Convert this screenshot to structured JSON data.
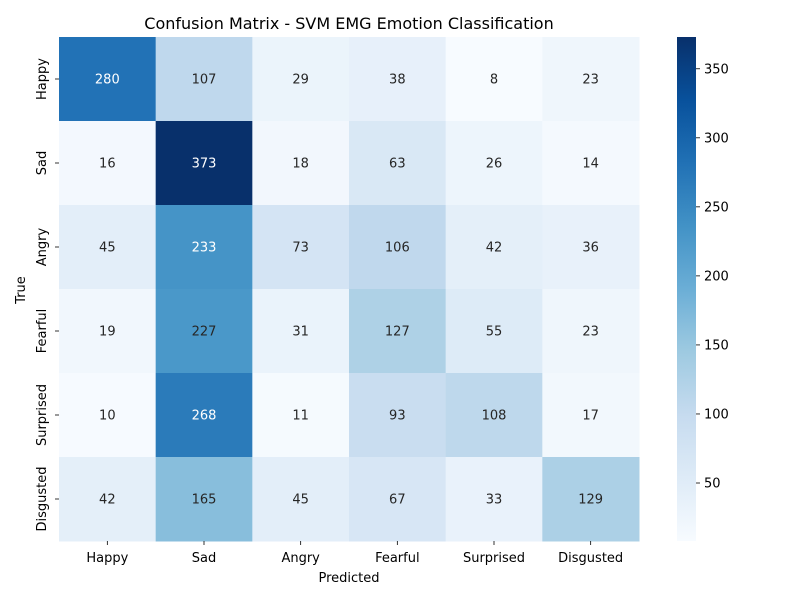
{
  "chart_data": {
    "type": "heatmap",
    "title": "Confusion Matrix - SVM EMG Emotion Classification",
    "xlabel": "Predicted",
    "ylabel": "True",
    "x_categories": [
      "Happy",
      "Sad",
      "Angry",
      "Fearful",
      "Surprised",
      "Disgusted"
    ],
    "y_categories": [
      "Happy",
      "Sad",
      "Angry",
      "Fearful",
      "Surprised",
      "Disgusted"
    ],
    "values": [
      [
        280,
        107,
        29,
        38,
        8,
        23
      ],
      [
        16,
        373,
        18,
        63,
        26,
        14
      ],
      [
        45,
        233,
        73,
        106,
        42,
        36
      ],
      [
        19,
        227,
        31,
        127,
        55,
        23
      ],
      [
        10,
        268,
        11,
        93,
        108,
        17
      ],
      [
        42,
        165,
        45,
        67,
        33,
        129
      ]
    ],
    "colormap": "Blues",
    "colorbar": {
      "range": [
        8,
        373
      ],
      "ticks": [
        50,
        100,
        150,
        200,
        250,
        300,
        350
      ]
    }
  }
}
